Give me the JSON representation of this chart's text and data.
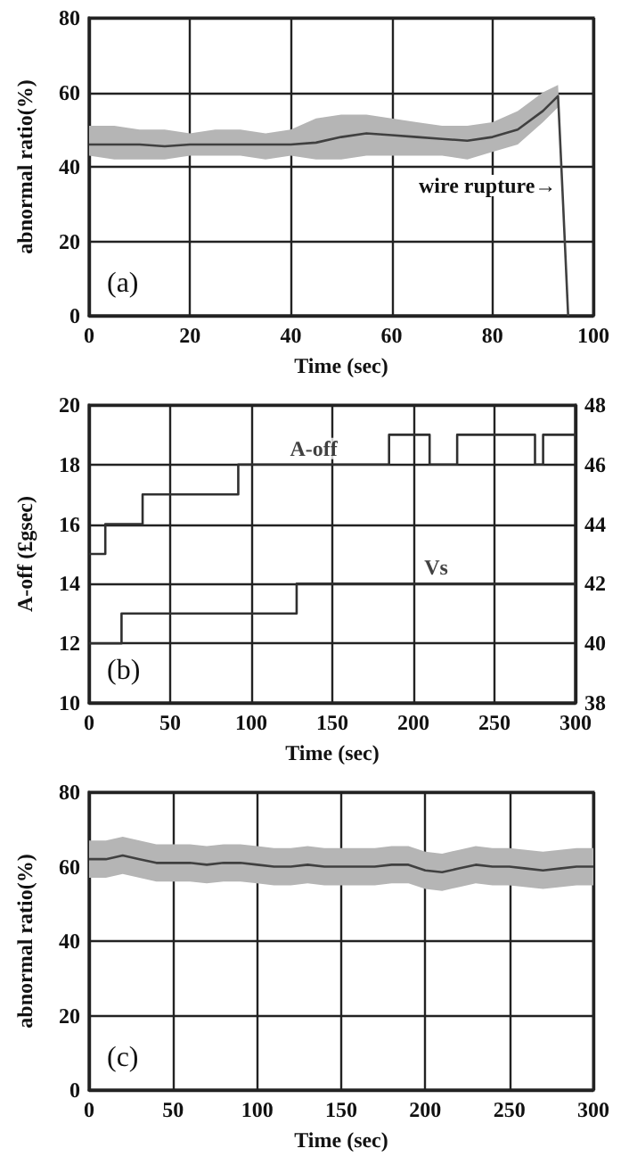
{
  "chart_data": [
    {
      "type": "line",
      "xlabel": "Time (sec)",
      "ylabel": "abnormal ratio(%)",
      "xlim": [
        0,
        100
      ],
      "xticks": [
        0,
        20,
        40,
        60,
        80,
        100
      ],
      "ylim": [
        0,
        80
      ],
      "yticks": [
        0,
        20,
        40,
        60,
        80
      ],
      "grid": true,
      "legend": false,
      "annotations": [
        "(a)",
        {
          "text": "wire rupture→",
          "x": 93,
          "y": 35
        }
      ],
      "x": [
        0,
        5,
        10,
        15,
        20,
        25,
        30,
        35,
        40,
        45,
        50,
        55,
        60,
        65,
        70,
        75,
        80,
        85,
        90,
        93,
        94,
        95
      ],
      "series": [
        {
          "color": "#404040",
          "values": [
            46,
            46,
            46,
            45.5,
            46,
            46,
            46,
            46,
            46,
            46.5,
            48,
            49,
            48.5,
            48,
            47.5,
            47,
            48,
            50,
            55,
            59,
            30,
            0
          ],
          "lower": [
            43,
            42,
            42,
            42,
            43,
            43,
            43,
            42,
            43,
            42,
            42,
            43,
            43,
            43,
            43,
            42,
            44,
            46,
            52,
            56,
            28,
            0
          ],
          "upper": [
            51,
            51,
            50,
            50,
            49,
            50,
            50,
            49,
            50,
            53,
            54,
            54,
            53,
            52,
            51,
            51,
            52,
            55,
            60,
            62,
            32,
            0
          ]
        }
      ]
    },
    {
      "type": "step",
      "xlabel": "Time (sec)",
      "ylabel": "A-off (£gsec)",
      "xlim": [
        0,
        300
      ],
      "xticks": [
        0,
        50,
        100,
        150,
        200,
        250,
        300
      ],
      "ylim": [
        10,
        20
      ],
      "yticks": [
        10,
        12,
        14,
        16,
        18,
        20
      ],
      "y2lim": [
        38,
        48
      ],
      "y2ticks": [
        38,
        40,
        42,
        44,
        46,
        48
      ],
      "grid": true,
      "legend": false,
      "annotations": [
        "(b)"
      ],
      "series": [
        {
          "name": "A-off",
          "color": "#303030",
          "x": [
            0,
            10,
            33,
            92,
            185,
            210,
            227,
            275,
            280,
            300
          ],
          "values": [
            15,
            16,
            17,
            18,
            19,
            18,
            19,
            18,
            19,
            19
          ]
        },
        {
          "name": "Vs",
          "color": "#303030",
          "axis": "y2",
          "x": [
            0,
            20,
            128,
            300
          ],
          "values": [
            40,
            41,
            42,
            42
          ]
        }
      ]
    },
    {
      "type": "line",
      "xlabel": "Time (sec)",
      "ylabel": "abnormal ratio(%)",
      "xlim": [
        0,
        300
      ],
      "xticks": [
        0,
        50,
        100,
        150,
        200,
        250,
        300
      ],
      "ylim": [
        0,
        80
      ],
      "yticks": [
        0,
        20,
        40,
        60,
        80
      ],
      "grid": true,
      "legend": false,
      "annotations": [
        "(c)"
      ],
      "x": [
        0,
        10,
        20,
        30,
        40,
        50,
        60,
        70,
        80,
        90,
        100,
        110,
        120,
        130,
        140,
        150,
        160,
        170,
        180,
        190,
        200,
        210,
        220,
        230,
        240,
        250,
        260,
        270,
        280,
        290,
        300
      ],
      "series": [
        {
          "color": "#404040",
          "values": [
            62,
            62,
            63,
            62,
            61,
            61,
            61,
            60.5,
            61,
            61,
            60.5,
            60,
            60,
            60.5,
            60,
            60,
            60,
            60,
            60.5,
            60.5,
            59,
            58.5,
            59.5,
            60.5,
            60,
            60,
            59.5,
            59,
            59.5,
            60,
            60
          ],
          "lower": [
            57,
            57,
            58,
            57,
            56,
            56,
            56,
            55.5,
            56,
            56,
            55.5,
            55,
            55,
            55.5,
            55,
            55,
            55,
            55,
            55.5,
            55.5,
            54,
            53.5,
            54.5,
            55.5,
            55,
            55,
            54.5,
            54,
            54.5,
            55,
            55
          ],
          "upper": [
            67,
            67,
            68,
            67,
            66,
            66,
            66,
            65.5,
            66,
            66,
            65.5,
            65,
            65,
            65.5,
            65,
            65,
            65,
            65,
            65.5,
            65.5,
            64,
            63.5,
            64.5,
            65.5,
            65,
            65,
            64.5,
            64,
            64.5,
            65,
            65
          ]
        }
      ]
    }
  ]
}
